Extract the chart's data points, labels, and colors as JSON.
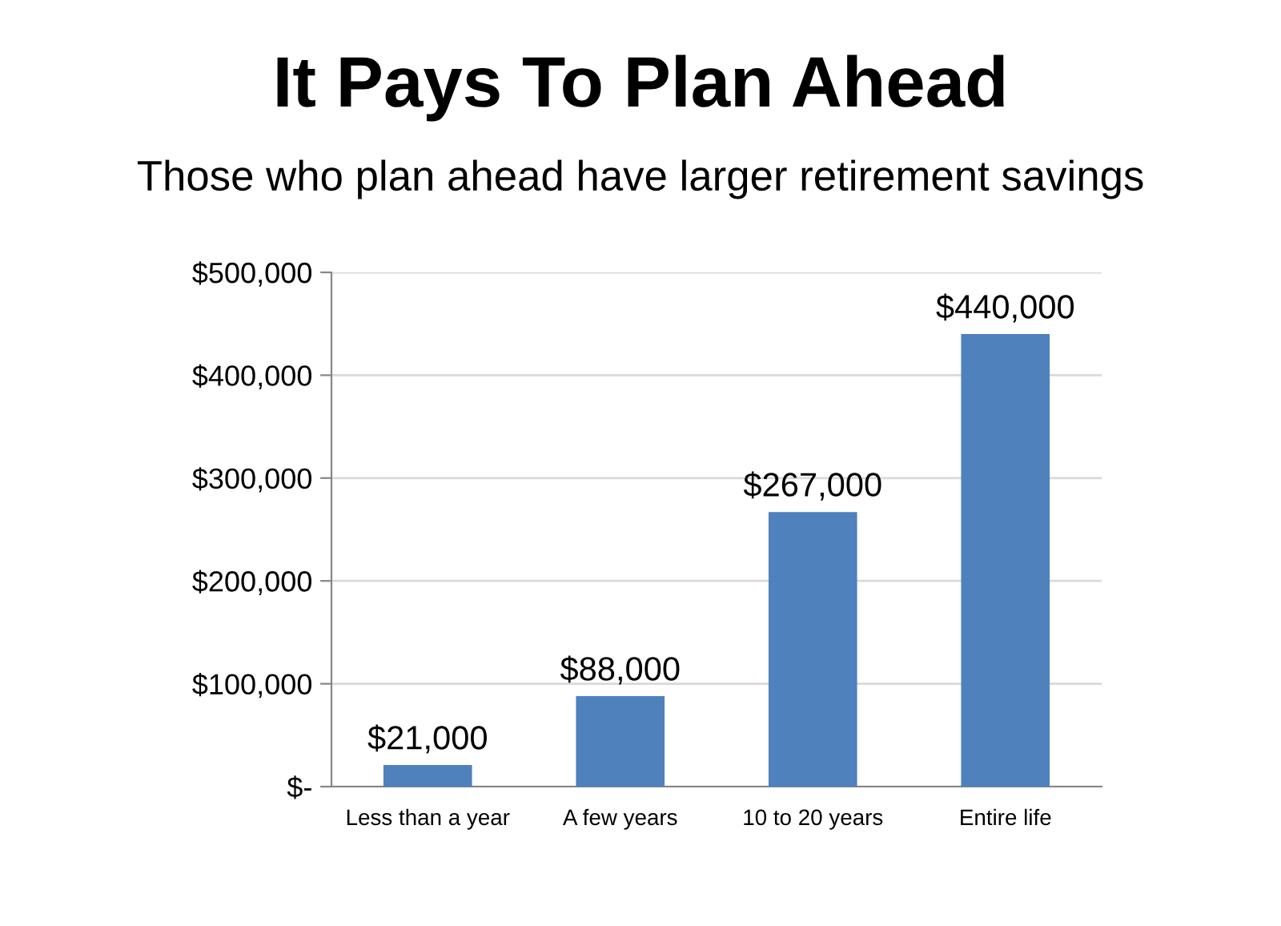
{
  "chart_data": {
    "type": "bar",
    "title": "It Pays To Plan Ahead",
    "subtitle": "Those who plan ahead have larger retirement savings",
    "categories": [
      "Less than a year",
      "A few years",
      "10 to 20 years",
      "Entire life"
    ],
    "values": [
      21000,
      88000,
      267000,
      440000
    ],
    "color": "#4f81bd",
    "value_labels": [
      "$21,000",
      "$88,000",
      "$267,000",
      "$440,000"
    ],
    "ylim": [
      0,
      500000
    ],
    "yticks": [
      {
        "value": 0,
        "label": "$-"
      },
      {
        "value": 100000,
        "label": "$100,000"
      },
      {
        "value": 200000,
        "label": "$200,000"
      },
      {
        "value": 300000,
        "label": "$300,000"
      },
      {
        "value": 400000,
        "label": "$400,000"
      },
      {
        "value": 500000,
        "label": "$500,000"
      }
    ],
    "grid": "y",
    "legend": false
  }
}
